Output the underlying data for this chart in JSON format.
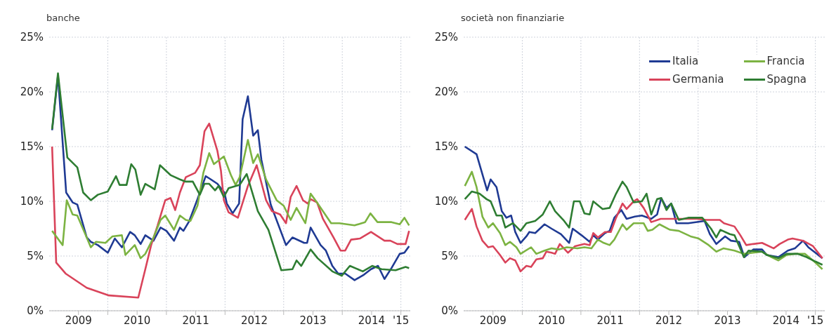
{
  "chart_data": [
    {
      "type": "line",
      "title": "banche",
      "legend": false,
      "grid": true,
      "xlim": [
        2009,
        2015.16
      ],
      "ylim": [
        0,
        25
      ],
      "xticks": [
        {
          "value": 2009.5,
          "label": "2009"
        },
        {
          "value": 2010,
          "label": null
        },
        {
          "value": 2010.5,
          "label": "2010"
        },
        {
          "value": 2011,
          "label": null
        },
        {
          "value": 2011.5,
          "label": "2011"
        },
        {
          "value": 2012,
          "label": null
        },
        {
          "value": 2012.5,
          "label": "2012"
        },
        {
          "value": 2013,
          "label": null
        },
        {
          "value": 2013.5,
          "label": "2013"
        },
        {
          "value": 2014,
          "label": null
        },
        {
          "value": 2014.5,
          "label": "2014"
        },
        {
          "value": 2015,
          "label": "'15"
        }
      ],
      "yticks": [
        {
          "value": 0,
          "label": "0%"
        },
        {
          "value": 5,
          "label": "5%"
        },
        {
          "value": 10,
          "label": "10%"
        },
        {
          "value": 15,
          "label": "15%"
        },
        {
          "value": 20,
          "label": "20%"
        },
        {
          "value": 25,
          "label": "25%"
        }
      ],
      "series": [
        {
          "color": "#1f3a93",
          "x": [
            2009.05,
            2009.15,
            2009.29,
            2009.4,
            2009.48,
            2009.64,
            2009.71,
            2009.83,
            2010.0,
            2010.12,
            2010.24,
            2010.38,
            2010.46,
            2010.56,
            2010.64,
            2010.78,
            2010.9,
            2011.0,
            2011.13,
            2011.23,
            2011.29,
            2011.39,
            2011.53,
            2011.67,
            2011.73,
            2011.87,
            2011.99,
            2012.03,
            2012.13,
            2012.24,
            2012.3,
            2012.39,
            2012.48,
            2012.56,
            2012.62,
            2012.78,
            2013.04,
            2013.15,
            2013.35,
            2013.4,
            2013.46,
            2013.63,
            2013.72,
            2013.83,
            2013.93,
            2014.05,
            2014.21,
            2014.37,
            2014.49,
            2014.61,
            2014.72,
            2014.84,
            2014.98,
            2015.06,
            2015.14
          ],
          "values": [
            16.5,
            21.5,
            10.8,
            9.9,
            9.7,
            6.7,
            6.3,
            6.0,
            5.3,
            6.6,
            5.8,
            7.2,
            6.9,
            6.1,
            6.9,
            6.4,
            7.6,
            7.3,
            6.4,
            7.6,
            7.3,
            8.2,
            10.2,
            12.3,
            12.1,
            11.6,
            10.8,
            9.8,
            8.9,
            9.8,
            17.5,
            19.6,
            16.0,
            16.5,
            13.8,
            9.7,
            6.0,
            6.7,
            6.2,
            6.2,
            7.6,
            6.0,
            5.5,
            4.1,
            3.4,
            3.4,
            2.8,
            3.3,
            3.8,
            4.1,
            2.9,
            3.9,
            5.2,
            5.3,
            5.9
          ]
        },
        {
          "color": "#d9435a",
          "x": [
            2009.05,
            2009.12,
            2009.28,
            2009.64,
            2010.02,
            2010.52,
            2010.64,
            2010.74,
            2010.85,
            2010.98,
            2011.07,
            2011.15,
            2011.23,
            2011.33,
            2011.49,
            2011.57,
            2011.65,
            2011.73,
            2011.87,
            2011.93,
            2011.98,
            2012.06,
            2012.22,
            2012.39,
            2012.54,
            2012.7,
            2012.8,
            2012.94,
            2013.04,
            2013.12,
            2013.22,
            2013.33,
            2013.41,
            2013.46,
            2013.57,
            2013.67,
            2013.85,
            2013.97,
            2014.05,
            2014.15,
            2014.3,
            2014.49,
            2014.72,
            2014.82,
            2014.94,
            2015.08,
            2015.14
          ],
          "values": [
            15.0,
            4.4,
            3.4,
            2.1,
            1.4,
            1.2,
            3.8,
            6.0,
            7.8,
            10.1,
            10.3,
            9.2,
            10.8,
            12.2,
            12.6,
            13.3,
            16.4,
            17.1,
            14.6,
            12.8,
            10.1,
            9.0,
            8.5,
            11.4,
            13.3,
            10.1,
            9.1,
            8.8,
            8.0,
            10.4,
            11.4,
            10.1,
            9.8,
            10.2,
            9.9,
            8.4,
            6.7,
            5.5,
            5.5,
            6.5,
            6.6,
            7.2,
            6.4,
            6.4,
            6.1,
            6.1,
            7.3
          ]
        },
        {
          "color": "#7cb342",
          "x": [
            2009.05,
            2009.23,
            2009.3,
            2009.4,
            2009.48,
            2009.64,
            2009.71,
            2009.8,
            2009.96,
            2010.08,
            2010.24,
            2010.3,
            2010.46,
            2010.56,
            2010.64,
            2010.78,
            2010.9,
            2010.98,
            2011.13,
            2011.23,
            2011.33,
            2011.41,
            2011.53,
            2011.63,
            2011.73,
            2011.81,
            2011.98,
            2012.1,
            2012.18,
            2012.25,
            2012.39,
            2012.48,
            2012.56,
            2012.7,
            2012.88,
            2013.0,
            2013.12,
            2013.22,
            2013.37,
            2013.46,
            2013.58,
            2013.81,
            2013.95,
            2014.21,
            2014.39,
            2014.48,
            2014.6,
            2014.84,
            2014.98,
            2015.06,
            2015.14
          ],
          "values": [
            7.3,
            6.0,
            10.1,
            8.8,
            8.7,
            6.7,
            5.8,
            6.3,
            6.2,
            6.8,
            6.9,
            5.1,
            6.0,
            4.8,
            5.2,
            6.7,
            8.3,
            8.7,
            7.4,
            8.7,
            8.3,
            8.2,
            9.6,
            12.6,
            14.4,
            13.4,
            14.1,
            12.4,
            11.5,
            12.2,
            15.6,
            13.5,
            14.3,
            12.0,
            10.1,
            9.6,
            8.3,
            9.4,
            8.0,
            10.7,
            9.8,
            8.0,
            8.0,
            7.8,
            8.1,
            8.9,
            8.1,
            8.1,
            7.9,
            8.5,
            7.8
          ]
        },
        {
          "color": "#2e7d32",
          "x": [
            2009.05,
            2009.15,
            2009.31,
            2009.48,
            2009.58,
            2009.71,
            2009.83,
            2010.0,
            2010.14,
            2010.2,
            2010.32,
            2010.4,
            2010.47,
            2010.56,
            2010.64,
            2010.8,
            2010.89,
            2011.07,
            2011.23,
            2011.33,
            2011.45,
            2011.57,
            2011.65,
            2011.73,
            2011.83,
            2011.89,
            2011.98,
            2012.06,
            2012.25,
            2012.37,
            2012.56,
            2012.74,
            2012.96,
            2013.15,
            2013.22,
            2013.3,
            2013.46,
            2013.58,
            2013.83,
            2013.99,
            2014.13,
            2014.35,
            2014.51,
            2014.67,
            2014.91,
            2015.08,
            2015.14
          ],
          "values": [
            16.6,
            21.7,
            14.0,
            13.1,
            10.8,
            10.1,
            10.6,
            10.9,
            12.3,
            11.5,
            11.5,
            13.4,
            12.9,
            10.6,
            11.6,
            11.1,
            13.3,
            12.4,
            12.0,
            11.8,
            11.8,
            10.6,
            11.6,
            11.6,
            11.0,
            11.4,
            10.4,
            11.2,
            11.5,
            12.5,
            9.1,
            7.4,
            3.7,
            3.8,
            4.6,
            4.1,
            5.6,
            4.8,
            3.6,
            3.2,
            4.1,
            3.6,
            4.1,
            3.8,
            3.7,
            4.0,
            3.9
          ]
        }
      ]
    },
    {
      "type": "line",
      "title": "società non finanziarie",
      "legend": "top right",
      "grid": true,
      "xlim": [
        2009,
        2015.16
      ],
      "ylim": [
        0,
        25
      ],
      "xticks": [
        {
          "value": 2009.5,
          "label": "2009"
        },
        {
          "value": 2010,
          "label": null
        },
        {
          "value": 2010.5,
          "label": "2010"
        },
        {
          "value": 2011,
          "label": null
        },
        {
          "value": 2011.5,
          "label": "2011"
        },
        {
          "value": 2012,
          "label": null
        },
        {
          "value": 2012.5,
          "label": "2012"
        },
        {
          "value": 2013,
          "label": null
        },
        {
          "value": 2013.5,
          "label": "2013"
        },
        {
          "value": 2014,
          "label": null
        },
        {
          "value": 2014.5,
          "label": "2014"
        },
        {
          "value": 2015,
          "label": "'15"
        }
      ],
      "yticks": [
        {
          "value": 0,
          "label": "0%"
        },
        {
          "value": 5,
          "label": "5%"
        },
        {
          "value": 10,
          "label": "10%"
        },
        {
          "value": 15,
          "label": "15%"
        },
        {
          "value": 20,
          "label": "20%"
        },
        {
          "value": 25,
          "label": "25%"
        }
      ],
      "series": [
        {
          "name": "Italia",
          "color": "#1f3a93",
          "x": [
            2009.02,
            2009.22,
            2009.4,
            2009.46,
            2009.56,
            2009.65,
            2009.73,
            2009.81,
            2009.88,
            2009.97,
            2010.07,
            2010.12,
            2010.22,
            2010.38,
            2010.5,
            2010.66,
            2010.8,
            2010.86,
            2011.01,
            2011.15,
            2011.21,
            2011.29,
            2011.41,
            2011.49,
            2011.57,
            2011.69,
            2011.78,
            2011.92,
            2012.04,
            2012.2,
            2012.3,
            2012.37,
            2012.46,
            2012.54,
            2012.63,
            2012.83,
            2013.11,
            2013.2,
            2013.31,
            2013.46,
            2013.56,
            2013.7,
            2013.79,
            2013.94,
            2014.09,
            2014.17,
            2014.37,
            2014.53,
            2014.65,
            2014.79,
            2014.88,
            2015.0,
            2015.12
          ],
          "values": [
            15.0,
            14.3,
            11.0,
            12.0,
            11.3,
            9.1,
            8.5,
            8.7,
            7.2,
            6.2,
            6.8,
            7.2,
            7.1,
            7.9,
            7.5,
            7.0,
            6.2,
            7.5,
            6.9,
            6.3,
            6.9,
            6.5,
            7.1,
            7.3,
            8.5,
            9.2,
            8.4,
            8.6,
            8.7,
            8.4,
            8.8,
            10.3,
            9.4,
            9.8,
            8.0,
            8.0,
            8.2,
            7.0,
            6.1,
            6.8,
            6.4,
            6.3,
            4.9,
            5.6,
            5.6,
            5.1,
            4.9,
            5.5,
            5.7,
            6.4,
            5.8,
            5.3,
            4.8
          ]
        },
        {
          "name": "Germania",
          "color": "#d9435a",
          "x": [
            2009.02,
            2009.14,
            2009.22,
            2009.32,
            2009.42,
            2009.5,
            2009.62,
            2009.71,
            2009.79,
            2009.88,
            2009.97,
            2010.07,
            2010.15,
            2010.24,
            2010.35,
            2010.41,
            2010.5,
            2010.56,
            2010.64,
            2010.78,
            2010.9,
            2011.06,
            2011.15,
            2011.21,
            2011.29,
            2011.41,
            2011.51,
            2011.6,
            2011.71,
            2011.78,
            2011.9,
            2011.96,
            2012.07,
            2012.2,
            2012.36,
            2012.48,
            2012.75,
            2012.99,
            2013.14,
            2013.37,
            2013.44,
            2013.62,
            2013.72,
            2013.82,
            2013.94,
            2014.09,
            2014.29,
            2014.39,
            2014.53,
            2014.61,
            2014.79,
            2014.96,
            2015.12
          ],
          "values": [
            8.3,
            9.3,
            7.7,
            6.4,
            5.8,
            5.9,
            5.1,
            4.4,
            4.8,
            4.6,
            3.6,
            4.1,
            4.0,
            4.7,
            4.8,
            5.4,
            5.3,
            5.2,
            6.1,
            5.3,
            5.9,
            6.1,
            6.0,
            7.1,
            6.7,
            7.2,
            7.2,
            8.5,
            9.8,
            9.3,
            10.0,
            10.2,
            9.4,
            8.1,
            8.4,
            8.4,
            8.4,
            8.4,
            8.3,
            8.3,
            8.0,
            7.7,
            6.9,
            6.0,
            6.1,
            6.2,
            5.7,
            6.1,
            6.5,
            6.6,
            6.4,
            5.9,
            4.8
          ]
        },
        {
          "name": "Francia",
          "color": "#7cb342",
          "x": [
            2009.02,
            2009.14,
            2009.22,
            2009.32,
            2009.42,
            2009.5,
            2009.62,
            2009.71,
            2009.79,
            2009.9,
            2009.97,
            2010.15,
            2010.24,
            2010.38,
            2010.5,
            2010.62,
            2010.76,
            2010.94,
            2011.06,
            2011.18,
            2011.29,
            2011.39,
            2011.49,
            2011.57,
            2011.71,
            2011.78,
            2011.9,
            2011.96,
            2012.07,
            2012.14,
            2012.22,
            2012.34,
            2012.52,
            2012.67,
            2012.87,
            2013.01,
            2013.18,
            2013.31,
            2013.43,
            2013.62,
            2013.78,
            2013.94,
            2014.09,
            2014.25,
            2014.37,
            2014.51,
            2014.65,
            2014.82,
            2014.98,
            2015.12
          ],
          "values": [
            11.4,
            12.7,
            11.3,
            8.6,
            7.6,
            8.0,
            7.1,
            6.0,
            6.3,
            5.8,
            5.2,
            5.8,
            5.2,
            5.5,
            5.7,
            5.6,
            5.8,
            5.7,
            5.8,
            5.7,
            6.5,
            6.2,
            6.0,
            6.5,
            7.9,
            7.4,
            8.0,
            8.0,
            8.0,
            7.3,
            7.4,
            7.9,
            7.4,
            7.3,
            6.8,
            6.6,
            6.0,
            5.4,
            5.7,
            5.5,
            5.2,
            5.3,
            5.4,
            4.9,
            4.6,
            5.1,
            5.2,
            5.2,
            4.5,
            3.8
          ]
        },
        {
          "name": "Spagna",
          "color": "#2e7d32",
          "x": [
            2009.02,
            2009.14,
            2009.27,
            2009.39,
            2009.46,
            2009.56,
            2009.65,
            2009.71,
            2009.84,
            2009.97,
            2010.07,
            2010.22,
            2010.35,
            2010.47,
            2010.56,
            2010.7,
            2010.8,
            2010.88,
            2010.98,
            2011.06,
            2011.15,
            2011.21,
            2011.37,
            2011.49,
            2011.6,
            2011.71,
            2011.78,
            2011.9,
            2012.04,
            2012.12,
            2012.2,
            2012.3,
            2012.37,
            2012.46,
            2012.54,
            2012.67,
            2012.83,
            2013.07,
            2013.22,
            2013.31,
            2013.38,
            2013.54,
            2013.62,
            2013.78,
            2013.86,
            2014.09,
            2014.17,
            2014.37,
            2014.51,
            2014.7,
            2014.85,
            2015.0,
            2015.12
          ],
          "values": [
            10.2,
            10.9,
            10.7,
            10.2,
            10.0,
            8.7,
            8.7,
            7.6,
            8.0,
            7.3,
            8.0,
            8.2,
            8.8,
            10.0,
            9.1,
            8.3,
            7.6,
            10.0,
            10.0,
            8.9,
            8.8,
            10.0,
            9.3,
            9.4,
            10.7,
            11.8,
            11.3,
            9.9,
            10.0,
            10.7,
            8.8,
            10.2,
            10.3,
            9.2,
            9.8,
            8.3,
            8.5,
            8.5,
            7.5,
            6.7,
            7.4,
            7.0,
            6.9,
            4.9,
            5.5,
            5.4,
            5.1,
            4.8,
            5.2,
            5.2,
            4.9,
            4.5,
            4.2
          ]
        }
      ]
    }
  ]
}
